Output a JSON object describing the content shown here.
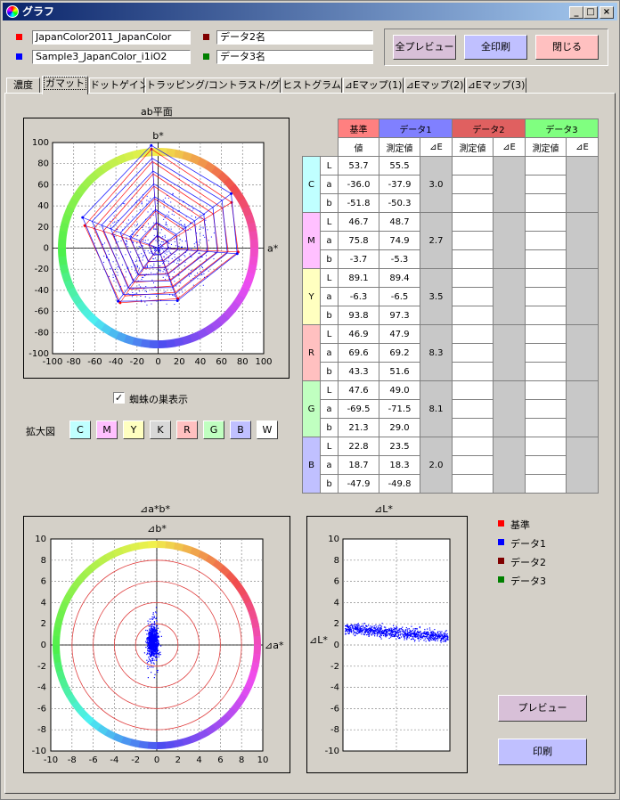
{
  "window": {
    "title": "グラフ",
    "min_label": "_",
    "max_label": "□",
    "close_label": "×"
  },
  "files": {
    "ref": {
      "name": "JapanColor2011_JapanColor",
      "color": "#ff0000"
    },
    "data1": {
      "name": "Sample3_JapanColor_i1iO2",
      "color": "#0000ff"
    },
    "data2": {
      "name": "データ2名",
      "color": "#800000"
    },
    "data3": {
      "name": "データ3名",
      "color": "#008000"
    }
  },
  "buttons": {
    "preview_all": "全プレビュー",
    "print_all": "全印刷",
    "close": "閉じる",
    "preview": "プレビュー",
    "print": "印刷"
  },
  "tabs": [
    {
      "label": "濃度",
      "active": false
    },
    {
      "label": "ガマット",
      "active": true
    },
    {
      "label": "ドットゲイン",
      "active": false
    },
    {
      "label": "トラッピング/コントラスト/グレー",
      "active": false
    },
    {
      "label": "ヒストグラム",
      "active": false
    },
    {
      "label": "⊿Eマップ(1)",
      "active": false
    },
    {
      "label": "⊿Eマップ(2)",
      "active": false
    },
    {
      "label": "⊿Eマップ(3)",
      "active": false
    }
  ],
  "ab_plot": {
    "title": "ab平面",
    "y_axis_label": "b*",
    "x_axis_label": "a*",
    "ticks": [
      -100,
      -80,
      -60,
      -40,
      -20,
      0,
      20,
      40,
      60,
      80,
      100
    ]
  },
  "spider": {
    "checkbox_label": "蜘蛛の巣表示",
    "checked": true,
    "check_mark": "✓"
  },
  "zoom": {
    "label": "拡大図",
    "buttons": [
      {
        "label": "C",
        "color": "#c0ffff"
      },
      {
        "label": "M",
        "color": "#ffc0ff"
      },
      {
        "label": "Y",
        "color": "#ffffc0"
      },
      {
        "label": "K",
        "color": "#d8d8d8"
      },
      {
        "label": "R",
        "color": "#ffc0c0"
      },
      {
        "label": "G",
        "color": "#c0ffc0"
      },
      {
        "label": "B",
        "color": "#c0c0ff"
      },
      {
        "label": "W",
        "color": "#ffffff"
      }
    ]
  },
  "table": {
    "headers": {
      "ref": "基準",
      "d1": "データ1",
      "d2": "データ2",
      "d3": "データ3"
    },
    "subheaders": {
      "value": "値",
      "measured": "測定値",
      "de": "⊿E"
    },
    "header_colors": {
      "ref": "#ff8080",
      "d1": "#8080ff",
      "d2": "#e06060",
      "d3": "#80ff80"
    },
    "rows": [
      {
        "patch": "C",
        "color": "#c0ffff",
        "L": [
          "53.7",
          "55.5"
        ],
        "a": [
          "-36.0",
          "-37.9"
        ],
        "b": [
          "-51.8",
          "-50.3"
        ],
        "de": "3.0"
      },
      {
        "patch": "M",
        "color": "#ffc0ff",
        "L": [
          "46.7",
          "48.7"
        ],
        "a": [
          "75.8",
          "74.9"
        ],
        "b": [
          "-3.7",
          "-5.3"
        ],
        "de": "2.7"
      },
      {
        "patch": "Y",
        "color": "#ffffc0",
        "L": [
          "89.1",
          "89.4"
        ],
        "a": [
          "-6.3",
          "-6.5"
        ],
        "b": [
          "93.8",
          "97.3"
        ],
        "de": "3.5"
      },
      {
        "patch": "R",
        "color": "#ffc0c0",
        "L": [
          "46.9",
          "47.9"
        ],
        "a": [
          "69.6",
          "69.2"
        ],
        "b": [
          "43.3",
          "51.6"
        ],
        "de": "8.3"
      },
      {
        "patch": "G",
        "color": "#c0ffc0",
        "L": [
          "47.6",
          "49.0"
        ],
        "a": [
          "-69.5",
          "-71.5"
        ],
        "b": [
          "21.3",
          "29.0"
        ],
        "de": "8.1"
      },
      {
        "patch": "B",
        "color": "#c0c0ff",
        "L": [
          "22.8",
          "23.5"
        ],
        "a": [
          "18.7",
          "18.3"
        ],
        "b": [
          "-47.9",
          "-49.8"
        ],
        "de": "2.0"
      }
    ],
    "component_labels": [
      "L",
      "a",
      "b"
    ]
  },
  "dab_plot": {
    "title": "⊿a*b*",
    "y_axis_label": "⊿b*",
    "x_axis_label": "⊿a*",
    "ticks": [
      -10,
      -8,
      -6,
      -4,
      -2,
      0,
      2,
      4,
      6,
      8,
      10
    ]
  },
  "dl_plot": {
    "title": "⊿L*",
    "y_axis_label": "⊿L*",
    "ticks": [
      10,
      8,
      6,
      4,
      2,
      0,
      -2,
      -4,
      -6,
      -8,
      -10
    ]
  },
  "legend": [
    {
      "label": "基準",
      "color": "#ff0000"
    },
    {
      "label": "データ1",
      "color": "#0000ff"
    },
    {
      "label": "データ2",
      "color": "#800000"
    },
    {
      "label": "データ3",
      "color": "#008000"
    }
  ],
  "chart_data": [
    {
      "type": "scatter",
      "title": "ab平面",
      "xlabel": "a*",
      "ylabel": "b*",
      "xlim": [
        -100,
        100
      ],
      "ylim": [
        -100,
        100
      ],
      "grid": true,
      "series": [
        {
          "name": "基準",
          "color": "#ff0000",
          "x": [
            -36.0,
            75.8,
            -6.3,
            69.6,
            -69.5,
            18.7
          ],
          "y": [
            -51.8,
            -3.7,
            93.8,
            43.3,
            21.3,
            -47.9
          ]
        },
        {
          "name": "データ1",
          "color": "#0000ff",
          "x": [
            -37.9,
            74.9,
            -6.5,
            69.2,
            -71.5,
            18.3
          ],
          "y": [
            -50.3,
            -5.3,
            97.3,
            51.6,
            29.0,
            -49.8
          ]
        }
      ]
    },
    {
      "type": "scatter",
      "title": "⊿a*b*",
      "xlabel": "⊿a*",
      "ylabel": "⊿b*",
      "xlim": [
        -10,
        10
      ],
      "ylim": [
        -10,
        10
      ],
      "grid": true,
      "rings": [
        2,
        4,
        6,
        8
      ],
      "series": [
        {
          "name": "データ1",
          "color": "#0000ff"
        }
      ]
    },
    {
      "type": "scatter",
      "title": "⊿L*",
      "ylabel": "⊿L*",
      "ylim": [
        -10,
        10
      ],
      "grid": true,
      "series": [
        {
          "name": "データ1",
          "color": "#0000ff"
        }
      ]
    }
  ]
}
